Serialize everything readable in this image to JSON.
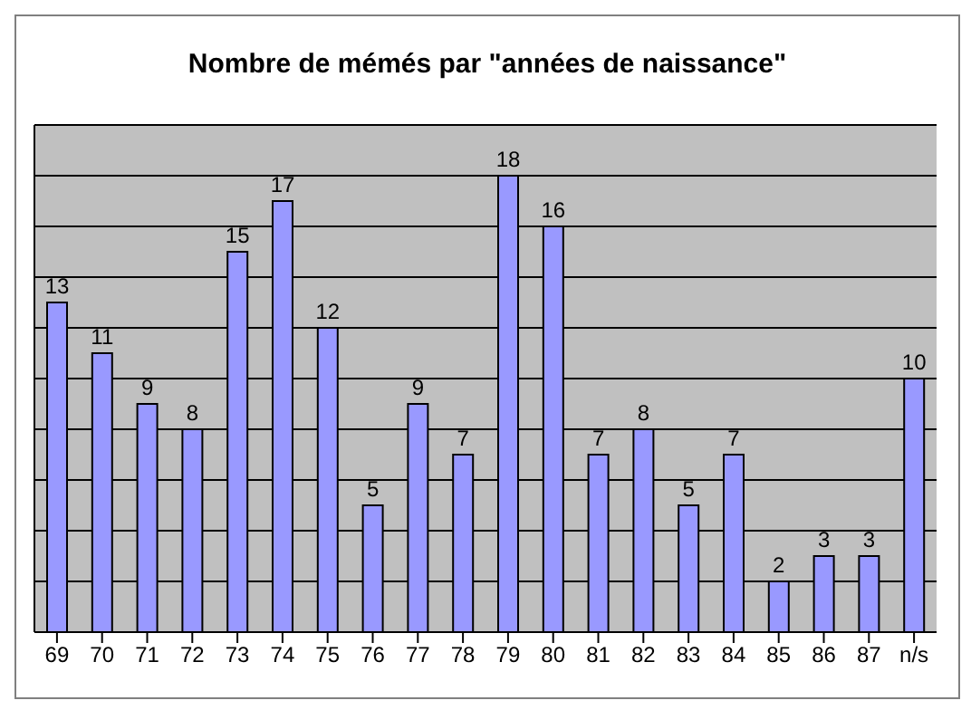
{
  "chart_data": {
    "type": "bar",
    "title": "Nombre de mémés par \"années de naissance\"",
    "categories": [
      "69",
      "70",
      "71",
      "72",
      "73",
      "74",
      "75",
      "76",
      "77",
      "78",
      "79",
      "80",
      "81",
      "82",
      "83",
      "84",
      "85",
      "86",
      "87",
      "n/s"
    ],
    "values": [
      13,
      11,
      9,
      8,
      15,
      17,
      12,
      5,
      9,
      7,
      18,
      16,
      7,
      8,
      5,
      7,
      2,
      3,
      3,
      10
    ],
    "color": "#9999ff",
    "data_labels": true,
    "ylim": [
      0,
      20
    ],
    "yticks": [
      {
        "value": 0,
        "label": null
      },
      {
        "value": 2,
        "label": null
      },
      {
        "value": 4,
        "label": null
      },
      {
        "value": 6,
        "label": null
      },
      {
        "value": 8,
        "label": null
      },
      {
        "value": 10,
        "label": null
      },
      {
        "value": 12,
        "label": null
      },
      {
        "value": 14,
        "label": null
      },
      {
        "value": 16,
        "label": null
      },
      {
        "value": 18,
        "label": null
      },
      {
        "value": 20,
        "label": null
      }
    ],
    "grid": "y",
    "tick_labels": "x",
    "legend": false
  }
}
